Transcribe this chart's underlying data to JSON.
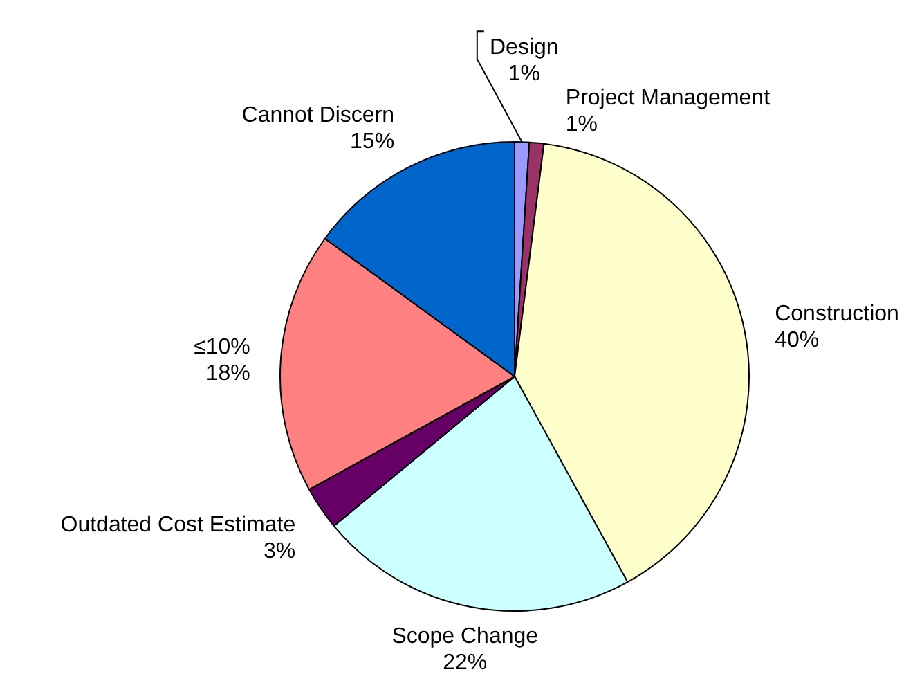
{
  "chart_data": {
    "type": "pie",
    "categories": [
      "Design",
      "Project Management",
      "Construction",
      "Scope Change",
      "Outdated Cost Estimate",
      "≤10%",
      "Cannot Discern"
    ],
    "values": [
      1,
      1,
      40,
      22,
      3,
      18,
      15
    ],
    "value_labels": [
      "1%",
      "1%",
      "40%",
      "22%",
      "3%",
      "18%",
      "15%"
    ],
    "colors": [
      "#9999ff",
      "#993366",
      "#ffffcc",
      "#ccffff",
      "#660066",
      "#ff8080",
      "#0066cc"
    ],
    "legend": false
  }
}
